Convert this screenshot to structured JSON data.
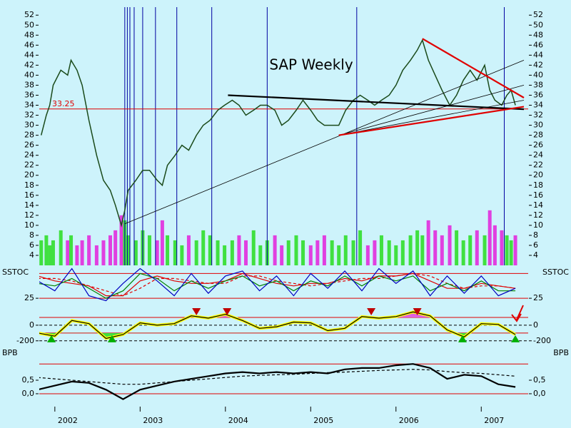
{
  "chart_data": [
    {
      "type": "line",
      "title": "SAP Weekly",
      "xlim": [
        2001.7,
        2007.5
      ],
      "xticks": [
        2002,
        2003,
        2004,
        2005,
        2006,
        2007
      ],
      "ylim": [
        2,
        53.6
      ],
      "yticks": [
        4,
        6,
        8,
        10,
        12,
        14,
        16,
        18,
        20,
        22,
        24,
        26,
        28,
        30,
        32,
        34,
        36,
        38,
        40,
        42,
        44,
        46,
        48,
        50,
        52
      ],
      "x": [
        2001.84,
        2001.9,
        2001.94,
        2001.98,
        2002.07,
        2002.15,
        2002.19,
        2002.26,
        2002.32,
        2002.4,
        2002.49,
        2002.57,
        2002.65,
        2002.71,
        2002.78,
        2002.82,
        2002.86,
        2002.95,
        2003.03,
        2003.11,
        2003.2,
        2003.26,
        2003.32,
        2003.41,
        2003.49,
        2003.57,
        2003.66,
        2003.74,
        2003.82,
        2003.91,
        2003.99,
        2004.08,
        2004.16,
        2004.24,
        2004.33,
        2004.41,
        2004.49,
        2004.58,
        2004.66,
        2004.74,
        2004.83,
        2004.91,
        2005.0,
        2005.08,
        2005.16,
        2005.25,
        2005.33,
        2005.41,
        2005.5,
        2005.58,
        2005.67,
        2005.75,
        2005.83,
        2005.92,
        2006.0,
        2006.08,
        2006.17,
        2006.25,
        2006.31,
        2006.38,
        2006.46,
        2006.54,
        2006.63,
        2006.71,
        2006.79,
        2006.87,
        2006.95,
        2007.04,
        2007.1,
        2007.16,
        2007.24,
        2007.3,
        2007.35,
        2007.4
      ],
      "values": [
        28,
        32,
        34,
        38,
        41,
        40,
        43,
        41,
        38,
        31,
        24,
        19,
        17,
        14,
        10,
        13,
        17,
        19,
        21,
        21,
        19,
        18,
        22,
        24,
        26,
        25,
        28,
        30,
        31,
        33,
        34,
        35,
        34,
        32,
        33,
        34,
        34,
        33,
        30,
        31,
        33,
        35,
        33,
        31,
        30,
        30,
        30,
        33,
        35,
        36,
        35,
        34,
        35,
        36,
        38,
        41,
        43,
        45,
        47,
        43,
        40,
        37,
        34,
        36,
        39,
        41,
        39,
        42,
        37,
        35,
        34,
        36,
        37,
        34
      ],
      "color": "#1a4a1a",
      "volume": {
        "up_color": "#40e040",
        "down_color": "#e040e0",
        "values": [
          7,
          8,
          6,
          7,
          9,
          7,
          8,
          6,
          7,
          8,
          6,
          7,
          8,
          9,
          12,
          11,
          8,
          7,
          9,
          8,
          7,
          11,
          8,
          7,
          6,
          8,
          7,
          9,
          8,
          7,
          6,
          7,
          8,
          7,
          9,
          6,
          7,
          8,
          6,
          7,
          8,
          7,
          6,
          7,
          8,
          7,
          6,
          8,
          7,
          9,
          6,
          7,
          8,
          7,
          6,
          7,
          8,
          9,
          8,
          11,
          9,
          8,
          10,
          9,
          7,
          8,
          9,
          8,
          13,
          10,
          9,
          8,
          7,
          8
        ]
      },
      "hlines": [
        33.25
      ],
      "hline_color": "#e00000",
      "vlines": [
        2002.82,
        2002.85,
        2002.88,
        2002.93,
        2003.03,
        2003.18,
        2003.43,
        2003.84,
        2004.49,
        2005.54,
        2007.27
      ],
      "vline_color": "#0000a0",
      "trendlines": [
        {
          "x": [
            2004.03,
            2007.5
          ],
          "y": [
            36,
            33.2
          ],
          "color": "#000000",
          "bold": true
        },
        {
          "x": [
            2002.82,
            2007.5
          ],
          "y": [
            10.3,
            43
          ],
          "color": "#000000",
          "bold": false
        },
        {
          "x": [
            2005.33,
            2007.5
          ],
          "y": [
            28,
            38
          ],
          "color": "#000000",
          "bold": false
        },
        {
          "x": [
            2005.33,
            2007.5
          ],
          "y": [
            28,
            35
          ],
          "color": "#000000",
          "bold": false
        },
        {
          "x": [
            2006.31,
            2007.5
          ],
          "y": [
            47.3,
            35.5
          ],
          "color": "#e00000",
          "bold": true
        },
        {
          "x": [
            2005.33,
            2007.5
          ],
          "y": [
            28,
            33.7
          ],
          "color": "#e00000",
          "bold": true
        }
      ]
    },
    {
      "type": "line",
      "label": "SSTOC",
      "ylim": [
        5,
        90
      ],
      "yticks": [
        25
      ],
      "hlines": [
        25,
        75
      ],
      "hline_color": "#e00000",
      "x": [
        2001.8,
        2002.0,
        2002.2,
        2002.4,
        2002.6,
        2002.8,
        2003.0,
        2003.2,
        2003.4,
        2003.6,
        2003.8,
        2004.0,
        2004.2,
        2004.4,
        2004.6,
        2004.8,
        2005.0,
        2005.2,
        2005.4,
        2005.6,
        2005.8,
        2006.0,
        2006.2,
        2006.4,
        2006.6,
        2006.8,
        2007.0,
        2007.2,
        2007.4
      ],
      "series": [
        {
          "color": "#e00000",
          "dash": true,
          "values": [
            65,
            65,
            60,
            50,
            40,
            30,
            45,
            65,
            65,
            60,
            55,
            55,
            70,
            70,
            60,
            55,
            50,
            55,
            60,
            65,
            65,
            70,
            75,
            70,
            55,
            45,
            50,
            50,
            45
          ]
        },
        {
          "color": "#e00000",
          "dash": false,
          "values": [
            70,
            60,
            55,
            50,
            30,
            30,
            60,
            70,
            60,
            55,
            55,
            60,
            75,
            65,
            55,
            50,
            55,
            55,
            65,
            60,
            70,
            70,
            75,
            60,
            45,
            45,
            55,
            50,
            45
          ]
        },
        {
          "color": "#008000",
          "dash": false,
          "values": [
            55,
            50,
            65,
            45,
            25,
            40,
            75,
            65,
            40,
            60,
            45,
            60,
            70,
            50,
            60,
            40,
            60,
            50,
            70,
            50,
            70,
            60,
            70,
            40,
            55,
            40,
            60,
            40,
            40
          ]
        },
        {
          "color": "#0000c0",
          "dash": false,
          "values": [
            60,
            40,
            85,
            30,
            20,
            55,
            85,
            60,
            30,
            75,
            35,
            70,
            80,
            40,
            70,
            30,
            75,
            45,
            80,
            40,
            85,
            55,
            80,
            30,
            70,
            35,
            70,
            30,
            45
          ]
        }
      ]
    },
    {
      "type": "line",
      "ylim": [
        -330,
        200
      ],
      "yticks": [
        0,
        -200
      ],
      "grid": "dashed",
      "hlines": [
        100,
        -100
      ],
      "hline_color": "#e00000",
      "fill_above": "#e060e0",
      "fill_below": "#40e040",
      "highlight": "#ffff00",
      "x": [
        2001.8,
        2002.0,
        2002.2,
        2002.4,
        2002.6,
        2002.8,
        2003.0,
        2003.2,
        2003.4,
        2003.6,
        2003.8,
        2004.0,
        2004.2,
        2004.4,
        2004.6,
        2004.8,
        2005.0,
        2005.2,
        2005.4,
        2005.6,
        2005.8,
        2006.0,
        2006.2,
        2006.4,
        2006.6,
        2006.8,
        2007.0,
        2007.2,
        2007.4
      ],
      "series": [
        {
          "color": "#000000",
          "dash": false,
          "values": [
            -100,
            -140,
            60,
            20,
            -170,
            -120,
            30,
            0,
            20,
            120,
            90,
            140,
            60,
            -40,
            -20,
            40,
            30,
            -70,
            -40,
            110,
            90,
            110,
            170,
            120,
            -60,
            -150,
            20,
            10,
            -120
          ]
        }
      ],
      "buy": [
        2001.96,
        2002.67,
        2006.78,
        2007.4
      ],
      "buy_color": "#00b000",
      "sell": [
        2003.66,
        2004.02,
        2005.71,
        2006.25
      ],
      "sell_color": "#c00000"
    },
    {
      "type": "line",
      "label": "BPB",
      "ylim": [
        -0.37,
        1.37
      ],
      "yticks": [
        {
          "value": 0.5,
          "label": "0,5"
        },
        {
          "value": 0,
          "label": "0,0"
        }
      ],
      "hlines": [
        0,
        1.1
      ],
      "hline_color": "#e00000",
      "x": [
        2001.8,
        2002.0,
        2002.2,
        2002.4,
        2002.6,
        2002.8,
        2003.0,
        2003.2,
        2003.4,
        2003.6,
        2003.8,
        2004.0,
        2004.2,
        2004.4,
        2004.6,
        2004.8,
        2005.0,
        2005.2,
        2005.4,
        2005.6,
        2005.8,
        2006.0,
        2006.2,
        2006.4,
        2006.6,
        2006.8,
        2007.0,
        2007.2,
        2007.4
      ],
      "series": [
        {
          "color": "#000000",
          "dash": true,
          "values": [
            0.6,
            0.55,
            0.5,
            0.45,
            0.4,
            0.35,
            0.35,
            0.4,
            0.45,
            0.5,
            0.55,
            0.6,
            0.65,
            0.68,
            0.7,
            0.72,
            0.75,
            0.78,
            0.8,
            0.83,
            0.86,
            0.88,
            0.9,
            0.88,
            0.82,
            0.78,
            0.75,
            0.7,
            0.65
          ]
        },
        {
          "color": "#000000",
          "dash": false,
          "values": [
            0.15,
            0.3,
            0.45,
            0.4,
            0.15,
            -0.2,
            0.15,
            0.3,
            0.45,
            0.55,
            0.65,
            0.75,
            0.8,
            0.75,
            0.8,
            0.75,
            0.8,
            0.75,
            0.9,
            0.95,
            0.95,
            1.05,
            1.1,
            0.95,
            0.55,
            0.7,
            0.65,
            0.35,
            0.25
          ]
        }
      ]
    }
  ]
}
